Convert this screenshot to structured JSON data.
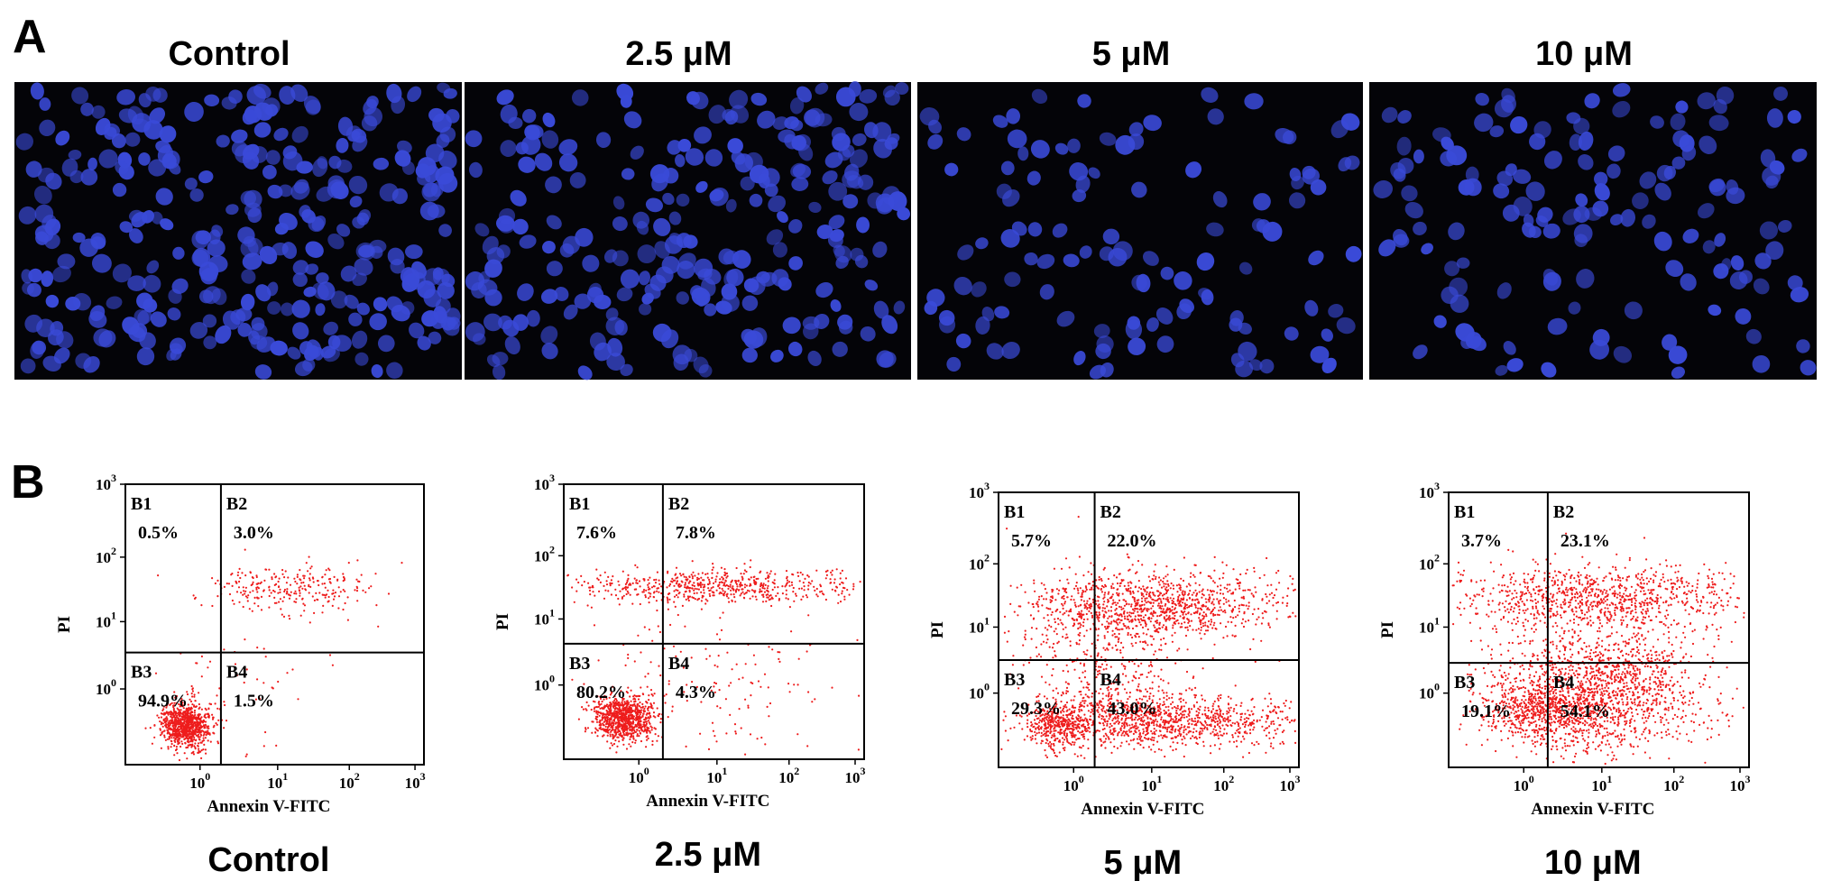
{
  "panel_a": {
    "label": "A",
    "images": [
      {
        "title": "Control"
      },
      {
        "title": "2.5 μM"
      },
      {
        "title": "5 μM"
      },
      {
        "title": "10 μM"
      }
    ]
  },
  "panel_b": {
    "label": "B",
    "x_label": "Annexin V-FITC",
    "y_label": "PI",
    "tick_base": "10",
    "tick_exponents": [
      "0",
      "1",
      "2",
      "3"
    ],
    "plots": [
      {
        "title": "Control",
        "quadrants": [
          {
            "name": "B1",
            "value": "0.5%"
          },
          {
            "name": "B2",
            "value": "3.0%"
          },
          {
            "name": "B3",
            "value": "94.9%"
          },
          {
            "name": "B4",
            "value": "1.5%"
          }
        ]
      },
      {
        "title": "2.5 μM",
        "quadrants": [
          {
            "name": "B1",
            "value": "7.6%"
          },
          {
            "name": "B2",
            "value": "7.8%"
          },
          {
            "name": "B3",
            "value": "80.2%"
          },
          {
            "name": "B4",
            "value": "4.3%"
          }
        ]
      },
      {
        "title": "5 μM",
        "quadrants": [
          {
            "name": "B1",
            "value": "5.7%"
          },
          {
            "name": "B2",
            "value": "22.0%"
          },
          {
            "name": "B3",
            "value": "29.3%"
          },
          {
            "name": "B4",
            "value": "43.0%"
          }
        ]
      },
      {
        "title": "10 μM",
        "quadrants": [
          {
            "name": "B1",
            "value": "3.7%"
          },
          {
            "name": "B2",
            "value": "23.1%"
          },
          {
            "name": "B3",
            "value": "19.1%"
          },
          {
            "name": "B4",
            "value": "54.1%"
          }
        ]
      }
    ]
  }
}
